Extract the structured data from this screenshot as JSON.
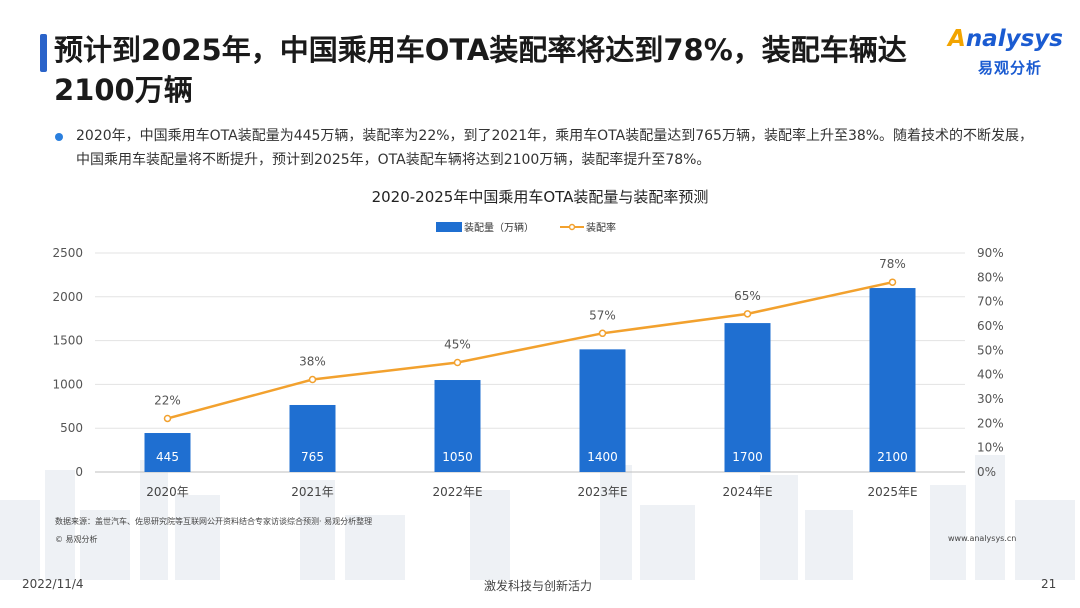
{
  "header": {
    "title": "预计到2025年，中国乘用车OTA装配率将达到78%，装配车辆达2100万辆"
  },
  "logo": {
    "brand_en_lead": "A",
    "brand_en_rest": "nalysys",
    "brand_cn": "易观分析",
    "primary_color": "#1a5bd1",
    "accent_color": "#f2a400"
  },
  "summary": {
    "text": "2020年，中国乘用车OTA装配量为445万辆，装配率为22%，到了2021年，乘用车OTA装配量达到765万辆，装配率上升至38%。随着技术的不断发展，中国乘用车装配量将不断提升，预计到2025年，OTA装配车辆将达到2100万辆，装配率提升至78%。"
  },
  "chart_data": {
    "type": "bar",
    "title": "2020-2025年中国乘用车OTA装配量与装配率预测",
    "categories": [
      "2020年",
      "2021年",
      "2022年E",
      "2023年E",
      "2024年E",
      "2025年E"
    ],
    "series": [
      {
        "name": "装配量（万辆）",
        "type": "bar",
        "axis": "left",
        "color": "#1f6fd1",
        "values": [
          445,
          765,
          1050,
          1400,
          1700,
          2100
        ],
        "labels": [
          "445",
          "765",
          "1050",
          "1400",
          "1700",
          "2100"
        ]
      },
      {
        "name": "装配率",
        "type": "line",
        "axis": "right",
        "color": "#f2a12e",
        "values": [
          22,
          38,
          45,
          57,
          65,
          78
        ],
        "labels": [
          "22%",
          "38%",
          "45%",
          "57%",
          "65%",
          "78%"
        ]
      }
    ],
    "ylim_left": [
      0,
      2500
    ],
    "yticks_left": [
      "0",
      "500",
      "1000",
      "1500",
      "2000",
      "2500"
    ],
    "ylim_right": [
      0,
      90
    ],
    "yticks_right": [
      "0%",
      "10%",
      "20%",
      "30%",
      "40%",
      "50%",
      "60%",
      "70%",
      "80%",
      "90%"
    ],
    "grid": true,
    "legend_position": "top-center"
  },
  "notes": {
    "source": "数据来源：盖世汽车、佐思研究院等互联网公开资料结合专家访谈综合预测· 易观分析整理",
    "copyright": "© 易观分析",
    "website": "www.analysys.cn"
  },
  "footer": {
    "date": "2022/11/4",
    "slogan": "激发科技与创新活力",
    "page": "21"
  }
}
